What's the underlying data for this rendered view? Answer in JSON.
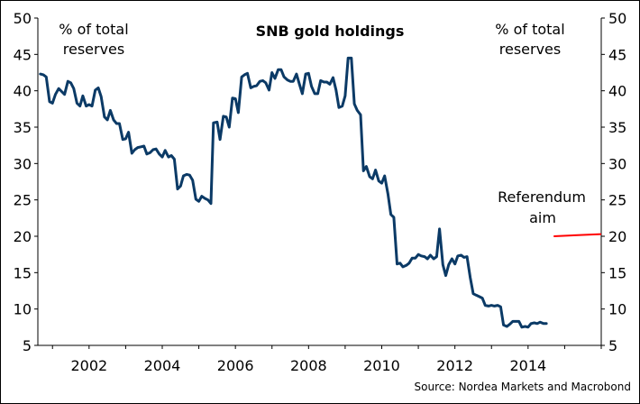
{
  "chart_data": {
    "type": "line",
    "title": "SNB gold holdings",
    "ylabel_left": "% of total reserves",
    "ylabel_right": "% of total reserves",
    "source": "Source: Nordea Markets and Macrobond",
    "xlim": [
      2000.6,
      2016
    ],
    "ylim": [
      5,
      50
    ],
    "x_ticks": [
      2002,
      2004,
      2006,
      2008,
      2010,
      2012,
      2014
    ],
    "y_ticks": [
      5,
      10,
      15,
      20,
      25,
      30,
      35,
      40,
      45,
      50
    ],
    "grid": false,
    "series": [
      {
        "color": "#0b3a66",
        "points": [
          [
            2000.67,
            42.3
          ],
          [
            2000.75,
            42.2
          ],
          [
            2000.83,
            41.9
          ],
          [
            2000.92,
            38.5
          ],
          [
            2001.0,
            38.3
          ],
          [
            2001.08,
            39.5
          ],
          [
            2001.17,
            40.3
          ],
          [
            2001.25,
            39.9
          ],
          [
            2001.33,
            39.5
          ],
          [
            2001.42,
            41.3
          ],
          [
            2001.5,
            41.1
          ],
          [
            2001.58,
            40.3
          ],
          [
            2001.67,
            38.3
          ],
          [
            2001.75,
            37.9
          ],
          [
            2001.83,
            39.3
          ],
          [
            2001.92,
            37.9
          ],
          [
            2002.0,
            38.1
          ],
          [
            2002.08,
            37.9
          ],
          [
            2002.17,
            40.1
          ],
          [
            2002.25,
            40.4
          ],
          [
            2002.33,
            39.2
          ],
          [
            2002.42,
            36.4
          ],
          [
            2002.5,
            36.0
          ],
          [
            2002.58,
            37.3
          ],
          [
            2002.67,
            36.0
          ],
          [
            2002.75,
            35.5
          ],
          [
            2002.83,
            35.5
          ],
          [
            2002.92,
            33.3
          ],
          [
            2003.0,
            33.4
          ],
          [
            2003.08,
            34.3
          ],
          [
            2003.17,
            31.4
          ],
          [
            2003.25,
            31.9
          ],
          [
            2003.33,
            32.2
          ],
          [
            2003.42,
            32.3
          ],
          [
            2003.5,
            32.4
          ],
          [
            2003.58,
            31.3
          ],
          [
            2003.67,
            31.5
          ],
          [
            2003.75,
            31.9
          ],
          [
            2003.83,
            32.0
          ],
          [
            2003.92,
            31.3
          ],
          [
            2004.0,
            30.9
          ],
          [
            2004.08,
            31.8
          ],
          [
            2004.17,
            30.9
          ],
          [
            2004.25,
            31.1
          ],
          [
            2004.33,
            30.6
          ],
          [
            2004.42,
            26.5
          ],
          [
            2004.5,
            26.9
          ],
          [
            2004.58,
            28.3
          ],
          [
            2004.67,
            28.5
          ],
          [
            2004.75,
            28.4
          ],
          [
            2004.83,
            27.7
          ],
          [
            2004.92,
            25.1
          ],
          [
            2005.0,
            24.8
          ],
          [
            2005.08,
            25.5
          ],
          [
            2005.17,
            25.2
          ],
          [
            2005.25,
            25.0
          ],
          [
            2005.33,
            24.5
          ],
          [
            2005.4,
            35.6
          ],
          [
            2005.5,
            35.7
          ],
          [
            2005.58,
            33.3
          ],
          [
            2005.67,
            36.5
          ],
          [
            2005.75,
            36.4
          ],
          [
            2005.83,
            35.0
          ],
          [
            2005.92,
            39.0
          ],
          [
            2006.0,
            38.9
          ],
          [
            2006.08,
            37.0
          ],
          [
            2006.17,
            41.9
          ],
          [
            2006.25,
            42.2
          ],
          [
            2006.33,
            42.4
          ],
          [
            2006.42,
            40.4
          ],
          [
            2006.5,
            40.6
          ],
          [
            2006.58,
            40.7
          ],
          [
            2006.67,
            41.3
          ],
          [
            2006.75,
            41.4
          ],
          [
            2006.83,
            41.1
          ],
          [
            2006.92,
            40.1
          ],
          [
            2007.0,
            42.5
          ],
          [
            2007.08,
            41.7
          ],
          [
            2007.17,
            42.9
          ],
          [
            2007.25,
            42.9
          ],
          [
            2007.33,
            41.9
          ],
          [
            2007.42,
            41.5
          ],
          [
            2007.5,
            41.3
          ],
          [
            2007.58,
            41.3
          ],
          [
            2007.67,
            42.3
          ],
          [
            2007.75,
            40.9
          ],
          [
            2007.83,
            39.6
          ],
          [
            2007.92,
            42.3
          ],
          [
            2008.0,
            42.4
          ],
          [
            2008.08,
            40.6
          ],
          [
            2008.17,
            39.6
          ],
          [
            2008.25,
            39.6
          ],
          [
            2008.33,
            41.4
          ],
          [
            2008.42,
            41.2
          ],
          [
            2008.5,
            41.2
          ],
          [
            2008.58,
            40.9
          ],
          [
            2008.67,
            41.8
          ],
          [
            2008.75,
            40.1
          ],
          [
            2008.83,
            37.7
          ],
          [
            2008.92,
            37.9
          ],
          [
            2009.0,
            39.3
          ],
          [
            2009.08,
            44.5
          ],
          [
            2009.17,
            44.5
          ],
          [
            2009.25,
            38.2
          ],
          [
            2009.33,
            37.3
          ],
          [
            2009.42,
            36.7
          ],
          [
            2009.5,
            29.0
          ],
          [
            2009.58,
            29.6
          ],
          [
            2009.67,
            28.2
          ],
          [
            2009.75,
            27.9
          ],
          [
            2009.83,
            29.1
          ],
          [
            2009.92,
            27.6
          ],
          [
            2010.0,
            27.3
          ],
          [
            2010.08,
            28.3
          ],
          [
            2010.17,
            25.8
          ],
          [
            2010.25,
            23.0
          ],
          [
            2010.33,
            22.6
          ],
          [
            2010.42,
            16.2
          ],
          [
            2010.5,
            16.3
          ],
          [
            2010.58,
            15.8
          ],
          [
            2010.67,
            16.0
          ],
          [
            2010.75,
            16.3
          ],
          [
            2010.83,
            17.0
          ],
          [
            2010.92,
            17.0
          ],
          [
            2011.0,
            17.5
          ],
          [
            2011.08,
            17.3
          ],
          [
            2011.17,
            17.2
          ],
          [
            2011.25,
            16.9
          ],
          [
            2011.33,
            17.4
          ],
          [
            2011.42,
            16.9
          ],
          [
            2011.5,
            17.2
          ],
          [
            2011.58,
            21.0
          ],
          [
            2011.67,
            16.1
          ],
          [
            2011.75,
            14.6
          ],
          [
            2011.83,
            16.1
          ],
          [
            2011.92,
            16.9
          ],
          [
            2012.0,
            16.2
          ],
          [
            2012.08,
            17.3
          ],
          [
            2012.17,
            17.4
          ],
          [
            2012.25,
            17.1
          ],
          [
            2012.33,
            17.2
          ],
          [
            2012.42,
            14.3
          ],
          [
            2012.5,
            12.1
          ],
          [
            2012.58,
            11.9
          ],
          [
            2012.67,
            11.7
          ],
          [
            2012.75,
            11.5
          ],
          [
            2012.83,
            10.5
          ],
          [
            2012.92,
            10.4
          ],
          [
            2013.0,
            10.5
          ],
          [
            2013.08,
            10.4
          ],
          [
            2013.17,
            10.5
          ],
          [
            2013.25,
            10.3
          ],
          [
            2013.33,
            7.8
          ],
          [
            2013.42,
            7.6
          ],
          [
            2013.5,
            7.9
          ],
          [
            2013.58,
            8.3
          ],
          [
            2013.67,
            8.3
          ],
          [
            2013.75,
            8.3
          ],
          [
            2013.83,
            7.5
          ],
          [
            2013.92,
            7.6
          ],
          [
            2014.0,
            7.5
          ],
          [
            2014.08,
            8.0
          ],
          [
            2014.17,
            8.1
          ],
          [
            2014.25,
            8.0
          ],
          [
            2014.33,
            8.2
          ],
          [
            2014.42,
            8.0
          ],
          [
            2014.5,
            8.0
          ]
        ]
      }
    ],
    "annotations": [
      {
        "text_line1": "Referendum",
        "text_line2": "aim",
        "line_color": "#ff0000",
        "x_start": 2014.7,
        "x_end": 2016,
        "y_start": 20,
        "y_end": 20.3
      }
    ]
  }
}
